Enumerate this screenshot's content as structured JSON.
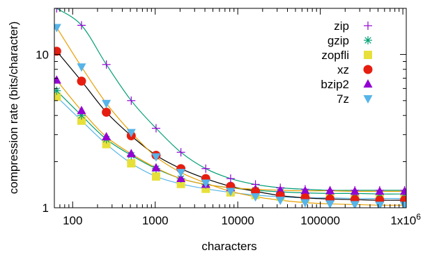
{
  "chart_data": {
    "type": "scatter",
    "title": "",
    "xlabel": "characters",
    "ylabel": "compression rate (bits/character)",
    "xscale": "log",
    "yscale": "log",
    "xlim": [
      60,
      1100000
    ],
    "ylim": [
      1,
      20
    ],
    "x_ticks": [
      {
        "value": 100,
        "label": "100"
      },
      {
        "value": 1000,
        "label": "1000"
      },
      {
        "value": 10000,
        "label": "10000"
      },
      {
        "value": 100000,
        "label": "100000"
      },
      {
        "value": 1000000,
        "label": "1x10",
        "sup": "6"
      }
    ],
    "y_ticks": [
      {
        "value": 1,
        "label": "1"
      },
      {
        "value": 10,
        "label": "10"
      }
    ],
    "grid": false,
    "legend_position": "top-right",
    "x": [
      64,
      128,
      256,
      512,
      1024,
      2048,
      4096,
      8192,
      16384,
      32768,
      65536,
      131072,
      262144,
      524288,
      1048576
    ],
    "series": [
      {
        "name": "zip",
        "marker": "plus",
        "color": "#9400d3",
        "fit_color": "#009e73",
        "values": [
          20.0,
          15.5,
          8.6,
          5.0,
          3.3,
          2.3,
          1.8,
          1.55,
          1.42,
          1.35,
          1.32,
          1.3,
          1.3,
          1.3,
          1.3
        ]
      },
      {
        "name": "gzip",
        "marker": "star",
        "color": "#009e73",
        "fit_color": "#009e73",
        "values": [
          5.8,
          4.0,
          2.8,
          2.2,
          1.8,
          1.55,
          1.42,
          1.35,
          1.3,
          1.27,
          1.25,
          1.24,
          1.24,
          1.23,
          1.23
        ]
      },
      {
        "name": "zopfli",
        "marker": "square",
        "color": "#e8e03a",
        "fit_color": "#56b4e9",
        "values": [
          5.3,
          3.7,
          2.6,
          1.95,
          1.6,
          1.43,
          1.33,
          1.26,
          1.21,
          1.18,
          1.16,
          1.16,
          1.15,
          1.15,
          1.15
        ]
      },
      {
        "name": "xz",
        "marker": "circle",
        "color": "#e51e10",
        "fit_color": "#000000",
        "values": [
          10.5,
          6.7,
          4.2,
          2.95,
          2.2,
          1.8,
          1.55,
          1.38,
          1.28,
          1.2,
          1.16,
          1.14,
          1.13,
          1.12,
          1.12
        ]
      },
      {
        "name": "bzip2",
        "marker": "triangle-up",
        "color": "#9400d3",
        "fit_color": "#e69f00",
        "values": [
          6.8,
          4.3,
          2.9,
          2.25,
          1.82,
          1.55,
          1.42,
          1.35,
          1.32,
          1.3,
          1.29,
          1.29,
          1.28,
          1.28,
          1.28
        ]
      },
      {
        "name": "7z",
        "marker": "triangle-down",
        "color": "#56b4e9",
        "fit_color": "#e69f00",
        "values": [
          15.0,
          8.3,
          4.8,
          3.1,
          2.15,
          1.7,
          1.45,
          1.28,
          1.18,
          1.12,
          1.08,
          1.06,
          1.05,
          1.04,
          1.04
        ]
      }
    ]
  }
}
